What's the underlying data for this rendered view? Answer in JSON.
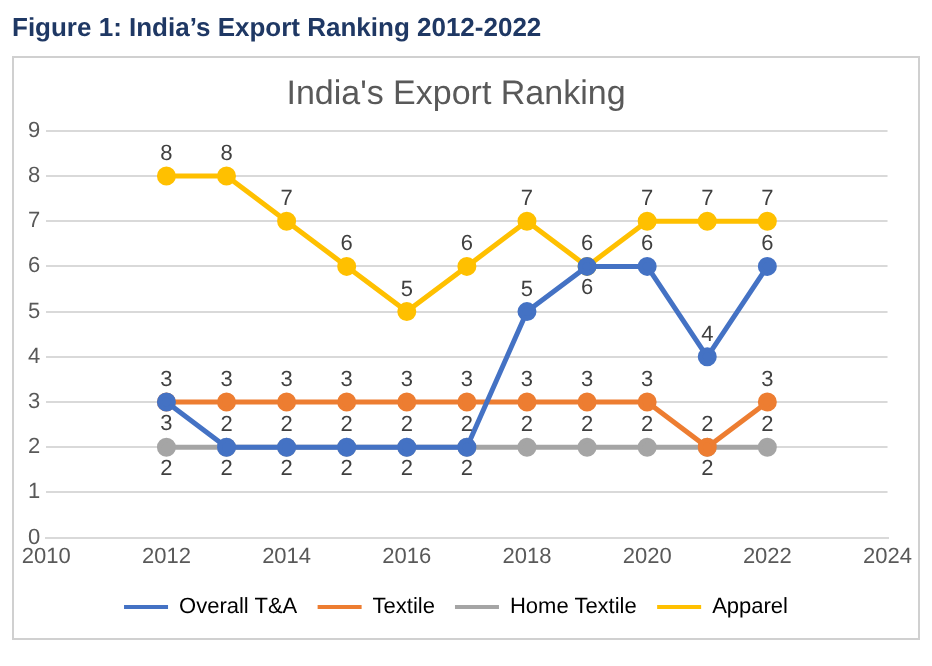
{
  "chart_data": {
    "type": "line",
    "title": "Figure 1: India’s Export Ranking 2012-2022",
    "subtitle": "India's Export Ranking",
    "x": [
      2012,
      2013,
      2014,
      2015,
      2016,
      2017,
      2018,
      2019,
      2020,
      2021,
      2022
    ],
    "series": [
      {
        "name": "Overall T&A",
        "color": "#4472c4",
        "values": [
          3,
          2,
          2,
          2,
          2,
          2,
          5,
          6,
          6,
          4,
          6
        ]
      },
      {
        "name": "Textile",
        "color": "#ed7d31",
        "values": [
          3,
          3,
          3,
          3,
          3,
          3,
          3,
          3,
          3,
          2,
          3
        ]
      },
      {
        "name": "Home Textile",
        "color": "#a5a5a5",
        "values": [
          2,
          2,
          2,
          2,
          2,
          2,
          2,
          2,
          2,
          2,
          2
        ]
      },
      {
        "name": "Apparel",
        "color": "#ffc000",
        "values": [
          8,
          8,
          7,
          6,
          5,
          6,
          7,
          6,
          7,
          7,
          7
        ]
      }
    ],
    "xlim": [
      2010,
      2024
    ],
    "xticks": [
      2010,
      2012,
      2014,
      2016,
      2018,
      2020,
      2022,
      2024
    ],
    "ylim": [
      0,
      9
    ],
    "yticks": [
      0,
      1,
      2,
      3,
      4,
      5,
      6,
      7,
      8,
      9
    ],
    "grid": "y",
    "legend": "bottom",
    "marker": "circle",
    "data_labels": true
  }
}
